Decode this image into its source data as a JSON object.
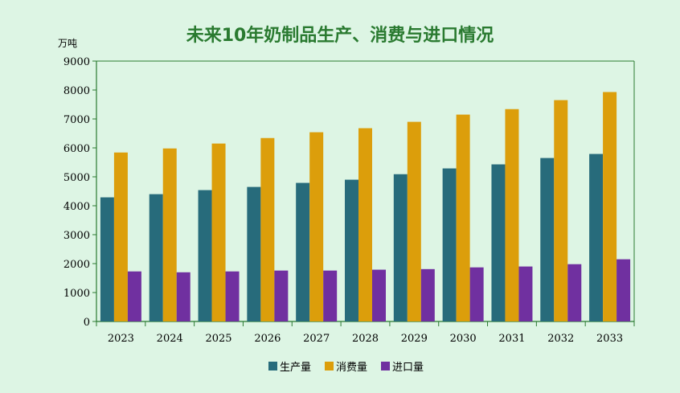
{
  "chart_data": {
    "type": "bar",
    "title": "未来10年奶制品生产、消费与进口情况",
    "ylabel": "万吨",
    "xlabel": "",
    "ylim": [
      0,
      9000
    ],
    "yticks": [
      0,
      1000,
      2000,
      3000,
      4000,
      5000,
      6000,
      7000,
      8000,
      9000
    ],
    "categories": [
      "2023",
      "2024",
      "2025",
      "2026",
      "2027",
      "2028",
      "2029",
      "2030",
      "2031",
      "2032",
      "2033"
    ],
    "series": [
      {
        "name": "生产量",
        "color": "#276b7b",
        "values": [
          4290,
          4400,
          4540,
          4650,
          4790,
          4900,
          5090,
          5290,
          5430,
          5650,
          5790
        ]
      },
      {
        "name": "消费量",
        "color": "#dc9e0b",
        "values": [
          5840,
          5980,
          6150,
          6340,
          6540,
          6680,
          6900,
          7150,
          7340,
          7650,
          7930
        ]
      },
      {
        "name": "进口量",
        "color": "#7030a0",
        "values": [
          1730,
          1700,
          1730,
          1760,
          1760,
          1790,
          1810,
          1870,
          1900,
          1980,
          2150
        ]
      }
    ],
    "legend_position": "bottom",
    "grid": false
  }
}
